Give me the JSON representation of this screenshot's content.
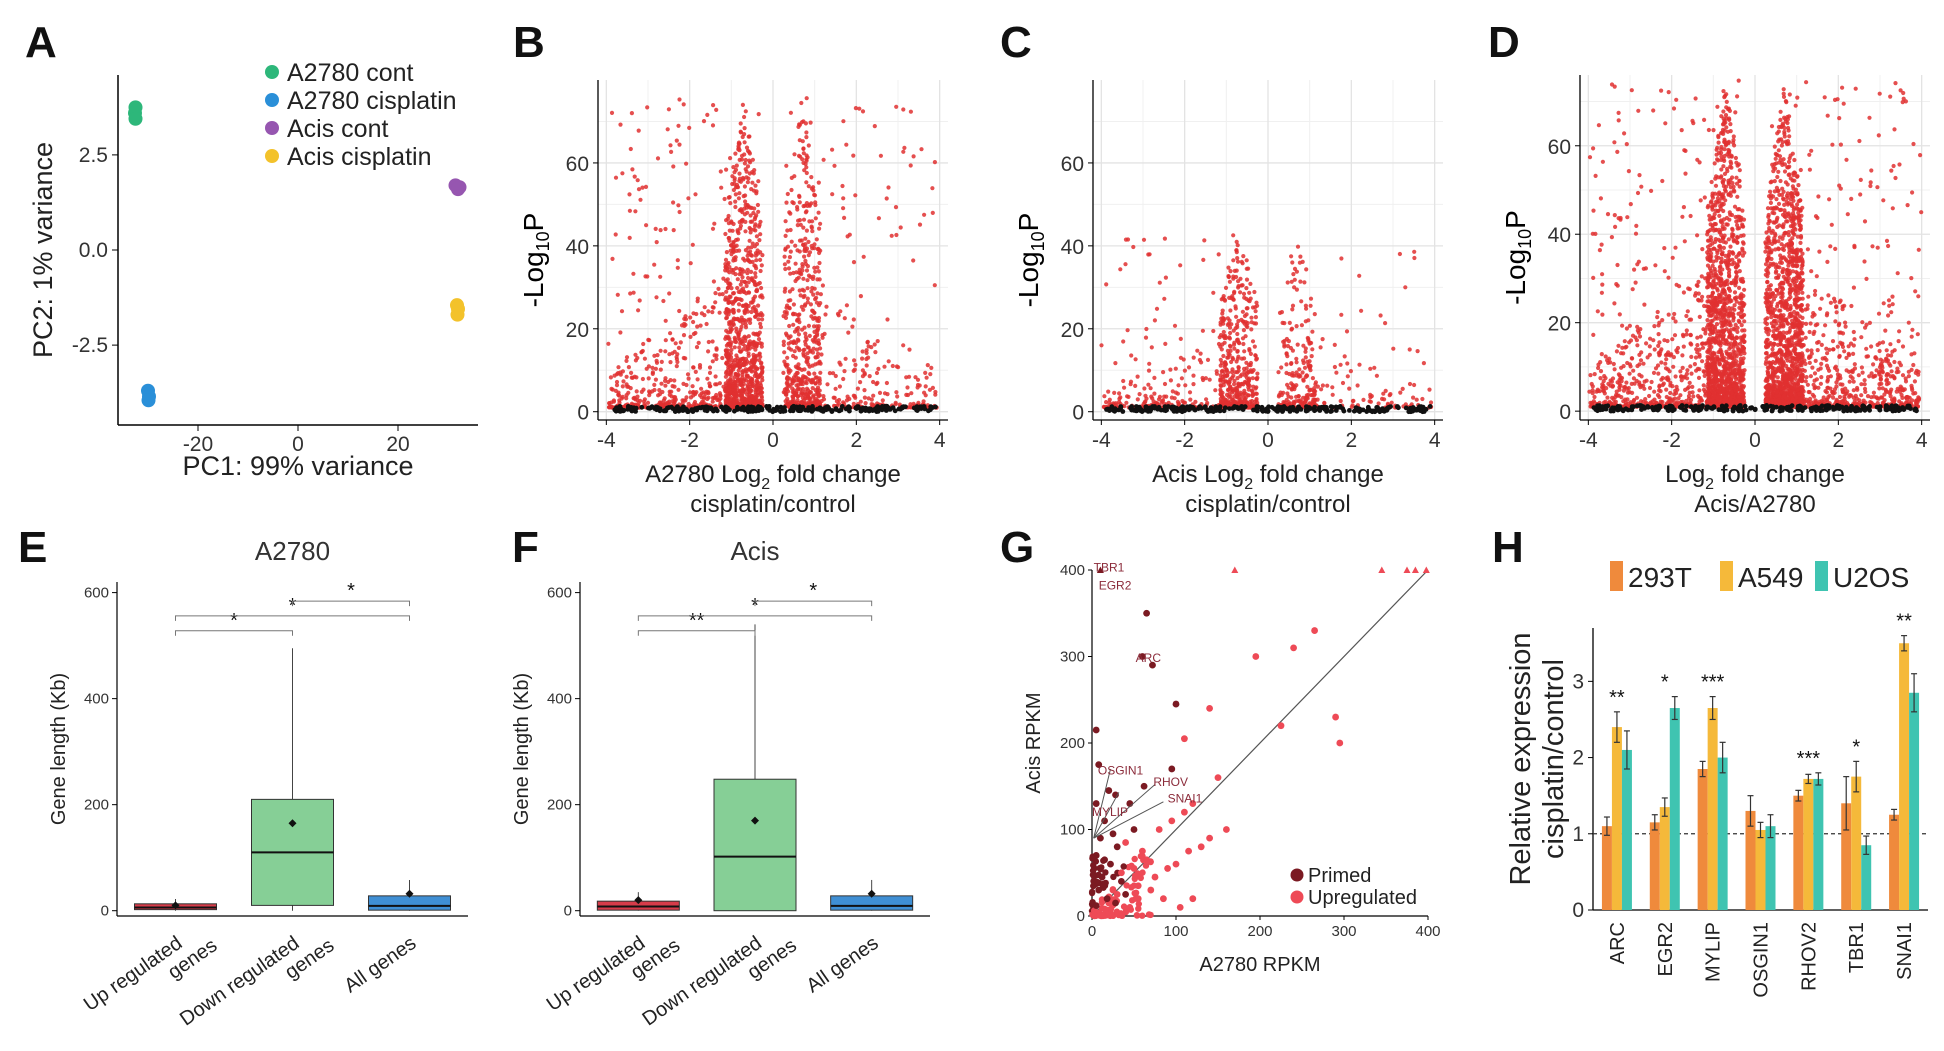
{
  "figure": {
    "panel_labels": [
      "A",
      "B",
      "C",
      "D",
      "E",
      "F",
      "G",
      "H"
    ]
  },
  "colors": {
    "green": "#2db77a",
    "blue": "#2a8fd8",
    "purple": "#9656b0",
    "yellow": "#f3c22b",
    "volcano_red": "#e03030",
    "volcano_black": "#111111",
    "box_red": "#d63c4a",
    "box_green": "#86cf96",
    "box_blue": "#3f8fd4",
    "primed": "#7b1a22",
    "upregulated": "#ee4a56",
    "bar_293T": "#ef8a3c",
    "bar_A549": "#f5b93a",
    "bar_U2OS": "#3fc4b1"
  },
  "chart_data": [
    {
      "panel": "A",
      "type": "scatter",
      "xlabel": "PC1: 99% variance",
      "ylabel": "PC2: 1% variance",
      "xlim": [
        -36,
        36
      ],
      "ylim": [
        -4.6,
        4.6
      ],
      "xticks": [
        "-20",
        "0",
        "20"
      ],
      "xtick_values": [
        -20,
        0,
        20
      ],
      "yticks": [
        "-2.5",
        "0.0",
        "2.5"
      ],
      "ytick_values": [
        -2.5,
        0.0,
        2.5
      ],
      "series": [
        {
          "name": "A2780 cont",
          "color": "green",
          "points": [
            [
              -32.5,
              3.75
            ],
            [
              -32.6,
              3.6
            ],
            [
              -32.5,
              3.45
            ]
          ]
        },
        {
          "name": "A2780 cisplatin",
          "color": "blue",
          "points": [
            [
              -30,
              -3.7
            ],
            [
              -29.8,
              -3.85
            ],
            [
              -29.9,
              -3.95
            ]
          ]
        },
        {
          "name": "Acis cont",
          "color": "purple",
          "points": [
            [
              31.5,
              1.7
            ],
            [
              32,
              1.6
            ],
            [
              32.3,
              1.65
            ]
          ]
        },
        {
          "name": "Acis cisplatin",
          "color": "yellow",
          "points": [
            [
              31.8,
              -1.45
            ],
            [
              32.0,
              -1.55
            ],
            [
              31.9,
              -1.7
            ]
          ]
        }
      ]
    },
    {
      "panel": "B",
      "type": "scatter",
      "subtype": "volcano",
      "xlabel_main": "A2780 Log",
      "xlabel_sub": "2",
      "xlabel_rest": " fold change",
      "xlabel_line2": "cisplatin/control",
      "ylabel": "-Log",
      "ylabel_sub": "10",
      "ylabel_rest": "P",
      "xlim": [
        -4.2,
        4.2
      ],
      "ylim": [
        -2,
        80
      ],
      "xticks": [
        "-4",
        "-2",
        "0",
        "2",
        "4"
      ],
      "xtick_values": [
        -4,
        -2,
        0,
        2,
        4
      ],
      "yticks": [
        "0",
        "20",
        "40",
        "60"
      ],
      "ytick_values": [
        0,
        20,
        40,
        60
      ],
      "max_significance": 75,
      "left_density": 1.0,
      "right_density": 0.55
    },
    {
      "panel": "C",
      "type": "scatter",
      "subtype": "volcano",
      "xlabel_main": "Acis Log",
      "xlabel_sub": "2",
      "xlabel_rest": " fold change",
      "xlabel_line2": "cisplatin/control",
      "ylabel": "-Log",
      "ylabel_sub": "10",
      "ylabel_rest": "P",
      "xlim": [
        -4.2,
        4.2
      ],
      "ylim": [
        -2,
        80
      ],
      "xticks": [
        "-4",
        "-2",
        "0",
        "2",
        "4"
      ],
      "xtick_values": [
        -4,
        -2,
        0,
        2,
        4
      ],
      "yticks": [
        "0",
        "20",
        "40",
        "60"
      ],
      "ytick_values": [
        0,
        20,
        40,
        60
      ],
      "max_significance": 42,
      "left_density": 0.45,
      "right_density": 0.22
    },
    {
      "panel": "D",
      "type": "scatter",
      "subtype": "volcano",
      "xlabel_main": "Log",
      "xlabel_sub": "2",
      "xlabel_rest": " fold change",
      "xlabel_line2": "Acis/A2780",
      "ylabel": "-Log",
      "ylabel_sub": "10",
      "ylabel_rest": "P",
      "xlim": [
        -4.2,
        4.2
      ],
      "ylim": [
        -2,
        76
      ],
      "xticks": [
        "-4",
        "-2",
        "0",
        "2",
        "4"
      ],
      "xtick_values": [
        -4,
        -2,
        0,
        2,
        4
      ],
      "yticks": [
        "0",
        "20",
        "40",
        "60"
      ],
      "ytick_values": [
        0,
        20,
        40,
        60
      ],
      "max_significance": 74,
      "left_density": 1.4,
      "right_density": 1.4
    },
    {
      "panel": "E",
      "type": "box",
      "title": "A2780",
      "ylabel": "Gene length (Kb)",
      "ylim": [
        -10,
        620
      ],
      "yticks": [
        "0",
        "200",
        "400",
        "600"
      ],
      "ytick_values": [
        0,
        200,
        400,
        600
      ],
      "categories": [
        "Up regulated\ngenes",
        "Down regulated\ngenes",
        "All genes"
      ],
      "boxes": [
        {
          "color": "box_red",
          "q1": 2,
          "median": 6,
          "q3": 13,
          "whisker_low": 0,
          "whisker_high": 22,
          "mean": 10
        },
        {
          "color": "box_green",
          "q1": 10,
          "median": 110,
          "q3": 210,
          "whisker_low": 0,
          "whisker_high": 495,
          "mean": 165
        },
        {
          "color": "box_blue",
          "q1": 1,
          "median": 9,
          "q3": 28,
          "whisker_low": 0,
          "whisker_high": 58,
          "mean": 32
        }
      ],
      "significance": [
        {
          "from": 0,
          "to": 1,
          "y": 528,
          "label": "*"
        },
        {
          "from": 0,
          "to": 2,
          "y": 556,
          "label": "*"
        },
        {
          "from": 1,
          "to": 2,
          "y": 584,
          "label": "*"
        }
      ]
    },
    {
      "panel": "F",
      "type": "box",
      "title": "Acis",
      "ylabel": "Gene length (Kb)",
      "ylim": [
        -10,
        620
      ],
      "yticks": [
        "0",
        "200",
        "400",
        "600"
      ],
      "ytick_values": [
        0,
        200,
        400,
        600
      ],
      "categories": [
        "Up regulated\ngenes",
        "Down regulated\ngenes",
        "All genes"
      ],
      "boxes": [
        {
          "color": "box_red",
          "q1": 1,
          "median": 8,
          "q3": 18,
          "whisker_low": 0,
          "whisker_high": 35,
          "mean": 20
        },
        {
          "color": "box_green",
          "q1": 0,
          "median": 102,
          "q3": 248,
          "whisker_low": 0,
          "whisker_high": 540,
          "mean": 170
        },
        {
          "color": "box_blue",
          "q1": 1,
          "median": 9,
          "q3": 28,
          "whisker_low": 0,
          "whisker_high": 58,
          "mean": 32
        }
      ],
      "significance": [
        {
          "from": 0,
          "to": 1,
          "y": 528,
          "label": "**"
        },
        {
          "from": 0,
          "to": 2,
          "y": 556,
          "label": "*"
        },
        {
          "from": 1,
          "to": 2,
          "y": 584,
          "label": "*"
        }
      ]
    },
    {
      "panel": "G",
      "type": "scatter",
      "xlabel": "A2780 RPKM",
      "ylabel": "Acis RPKM",
      "xlim": [
        0,
        400
      ],
      "ylim": [
        0,
        400
      ],
      "xticks": [
        "0",
        "100",
        "200",
        "300",
        "400"
      ],
      "xtick_values": [
        0,
        100,
        200,
        300,
        400
      ],
      "yticks": [
        "0",
        "100",
        "200",
        "300",
        "400"
      ],
      "ytick_values": [
        0,
        100,
        200,
        300,
        400
      ],
      "legend": [
        "Primed",
        "Upregulated"
      ],
      "primed_points": [
        [
          10,
          400
        ],
        [
          65,
          350
        ],
        [
          60,
          300
        ],
        [
          72,
          290
        ],
        [
          100,
          245
        ],
        [
          5,
          215
        ],
        [
          8,
          175
        ],
        [
          20,
          145
        ],
        [
          28,
          140
        ],
        [
          62,
          150
        ],
        [
          95,
          170
        ],
        [
          5,
          130
        ],
        [
          45,
          130
        ],
        [
          15,
          110
        ],
        [
          25,
          95
        ],
        [
          10,
          90
        ],
        [
          30,
          80
        ],
        [
          5,
          70
        ],
        [
          22,
          60
        ],
        [
          12,
          45
        ],
        [
          35,
          40
        ],
        [
          8,
          30
        ],
        [
          18,
          20
        ],
        [
          5,
          12
        ],
        [
          28,
          15
        ],
        [
          40,
          25
        ],
        [
          15,
          65
        ],
        [
          50,
          100
        ]
      ],
      "upregulated_points": [
        [
          170,
          400
        ],
        [
          345,
          400
        ],
        [
          375,
          400
        ],
        [
          385,
          400
        ],
        [
          398,
          400
        ],
        [
          265,
          330
        ],
        [
          240,
          310
        ],
        [
          195,
          300
        ],
        [
          290,
          230
        ],
        [
          225,
          220
        ],
        [
          295,
          200
        ],
        [
          140,
          240
        ],
        [
          110,
          205
        ],
        [
          150,
          160
        ],
        [
          120,
          130
        ],
        [
          110,
          120
        ],
        [
          95,
          110
        ],
        [
          80,
          100
        ],
        [
          160,
          100
        ],
        [
          140,
          90
        ],
        [
          130,
          80
        ],
        [
          115,
          75
        ],
        [
          100,
          60
        ],
        [
          90,
          55
        ],
        [
          75,
          45
        ],
        [
          120,
          20
        ],
        [
          70,
          30
        ],
        [
          55,
          20
        ],
        [
          50,
          55
        ],
        [
          60,
          75
        ],
        [
          35,
          50
        ],
        [
          25,
          30
        ],
        [
          20,
          15
        ],
        [
          45,
          10
        ],
        [
          85,
          20
        ],
        [
          105,
          10
        ],
        [
          65,
          65
        ],
        [
          40,
          85
        ],
        [
          30,
          25
        ],
        [
          15,
          8
        ],
        [
          55,
          35
        ]
      ],
      "labels": [
        {
          "text": "TBR1",
          "x": 2,
          "y": 403
        },
        {
          "text": "EGR2",
          "x": 8,
          "y": 382
        },
        {
          "text": "ARC",
          "x": 52,
          "y": 298
        },
        {
          "text": "OSGIN1",
          "x": 7,
          "y": 168
        },
        {
          "text": "RHOV",
          "x": 73,
          "y": 155
        },
        {
          "text": "SNAI1",
          "x": 90,
          "y": 136
        },
        {
          "text": "MYLIP",
          "x": 0,
          "y": 120
        }
      ]
    },
    {
      "panel": "H",
      "type": "bar",
      "ylabel_line1": "Relative expression",
      "ylabel_line2": "cisplatin/control",
      "ylim": [
        0,
        3.7
      ],
      "reference_line": 1,
      "yticks": [
        "0",
        "1",
        "2",
        "3"
      ],
      "ytick_values": [
        0,
        1,
        2,
        3
      ],
      "categories": [
        "ARC",
        "EGR2",
        "MYLIP",
        "OSGIN1",
        "RHOV2",
        "TBR1",
        "SNAI1"
      ],
      "series": [
        {
          "name": "293T",
          "color": "bar_293T",
          "values": [
            1.1,
            1.15,
            1.85,
            1.3,
            1.5,
            1.4,
            1.25
          ],
          "errors": [
            0.12,
            0.1,
            0.1,
            0.2,
            0.07,
            0.35,
            0.07
          ]
        },
        {
          "name": "A549",
          "color": "bar_A549",
          "values": [
            2.4,
            1.35,
            2.65,
            1.05,
            1.72,
            1.75,
            3.5
          ],
          "errors": [
            0.2,
            0.12,
            0.15,
            0.1,
            0.06,
            0.2,
            0.1
          ]
        },
        {
          "name": "U2OS",
          "color": "bar_U2OS",
          "values": [
            2.1,
            2.65,
            2.0,
            1.1,
            1.72,
            0.85,
            2.85
          ],
          "errors": [
            0.25,
            0.15,
            0.2,
            0.15,
            0.08,
            0.12,
            0.25
          ]
        }
      ],
      "significance": [
        "**",
        "*",
        "***",
        "",
        "***",
        "*",
        "**"
      ]
    }
  ]
}
